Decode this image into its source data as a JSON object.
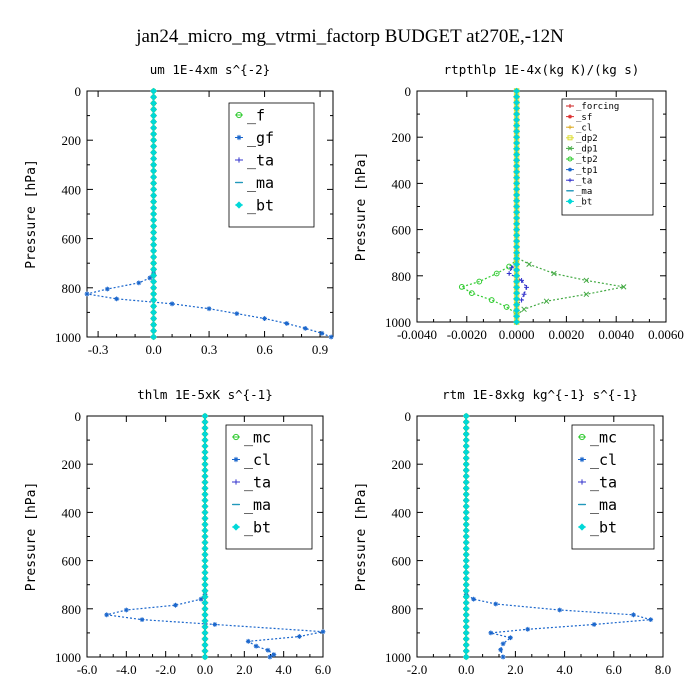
{
  "figure": {
    "title": "jan24_micro_mg_vtrmi_factorp  BUDGET at270E,-12N"
  },
  "chart_data": [
    {
      "type": "line",
      "title": "um   1E-4xm s^{-2}",
      "ylabel": "Pressure [hPa]",
      "xlabel": "",
      "xlim": [
        -0.36,
        0.97
      ],
      "ylim": [
        1000,
        0
      ],
      "x_ticks": [
        -0.3,
        0.0,
        0.3,
        0.6,
        0.9
      ],
      "x_tick_labels": [
        "-0.3",
        "0.0",
        "0.3",
        "0.6",
        "0.9"
      ],
      "y_ticks": [
        0,
        200,
        400,
        600,
        800,
        1000
      ],
      "y_tick_labels": [
        "0",
        "200",
        "400",
        "600",
        "800",
        "1000"
      ],
      "legend_position": "top-right",
      "series": [
        {
          "name": "_f",
          "color": "#33cc33",
          "marker": "circle",
          "mode": "zero"
        },
        {
          "name": "_gf",
          "color": "#1a66cc",
          "marker": "star",
          "mode": "points",
          "points": [
            [
              0,
              0
            ],
            [
              0,
              740
            ],
            [
              -0.02,
              760
            ],
            [
              -0.08,
              780
            ],
            [
              -0.25,
              805
            ],
            [
              -0.36,
              825
            ],
            [
              -0.2,
              845
            ],
            [
              0.1,
              865
            ],
            [
              0.3,
              885
            ],
            [
              0.45,
              905
            ],
            [
              0.6,
              925
            ],
            [
              0.72,
              945
            ],
            [
              0.82,
              965
            ],
            [
              0.91,
              985
            ],
            [
              0.96,
              1000
            ]
          ]
        },
        {
          "name": "_ta",
          "color": "#3333cc",
          "marker": "plus",
          "mode": "zero"
        },
        {
          "name": "_ma",
          "color": "#2299bb",
          "marker": "dash",
          "mode": "zero"
        },
        {
          "name": "_bt",
          "color": "#00d8d8",
          "marker": "diamond",
          "mode": "zero"
        }
      ]
    },
    {
      "type": "line",
      "title": "rtpthlp   1E-4x(kg K)/(kg s)",
      "ylabel": "Pressure [hPa]",
      "xlabel": "",
      "xlim": [
        -0.004,
        0.006
      ],
      "ylim": [
        1000,
        0
      ],
      "x_ticks": [
        -0.004,
        -0.002,
        0.0,
        0.002,
        0.004,
        0.006
      ],
      "x_tick_labels": [
        "-0.0040",
        "-0.0020",
        "0.0000",
        "0.0020",
        "0.0040",
        "0.0060"
      ],
      "y_ticks": [
        0,
        200,
        400,
        600,
        800,
        1000
      ],
      "y_tick_labels": [
        "0",
        "200",
        "400",
        "600",
        "800",
        "1000"
      ],
      "legend_position": "top-right",
      "series": [
        {
          "name": "_forcing",
          "color": "#cc2222",
          "marker": "plus",
          "mode": "zero"
        },
        {
          "name": "_sf",
          "color": "#dd3333",
          "marker": "star",
          "mode": "zero"
        },
        {
          "name": "_cl",
          "color": "#ddaa22",
          "marker": "plus",
          "mode": "zero"
        },
        {
          "name": "_dp2",
          "color": "#dddd33",
          "marker": "square",
          "mode": "zero"
        },
        {
          "name": "_dp1",
          "color": "#44aa44",
          "marker": "x",
          "mode": "points",
          "points": [
            [
              0,
              0
            ],
            [
              0,
              720
            ],
            [
              0.0005,
              750
            ],
            [
              0.0015,
              790
            ],
            [
              0.0028,
              820
            ],
            [
              0.0043,
              848
            ],
            [
              0.0028,
              880
            ],
            [
              0.0012,
              910
            ],
            [
              0.0003,
              945
            ],
            [
              0,
              970
            ],
            [
              0,
              1000
            ]
          ]
        },
        {
          "name": "_tp2",
          "color": "#33cc33",
          "marker": "circle",
          "mode": "points",
          "points": [
            [
              0,
              0
            ],
            [
              0,
              730
            ],
            [
              -0.0003,
              760
            ],
            [
              -0.0008,
              790
            ],
            [
              -0.0015,
              825
            ],
            [
              -0.0022,
              848
            ],
            [
              -0.0018,
              875
            ],
            [
              -0.001,
              905
            ],
            [
              -0.0004,
              935
            ],
            [
              0,
              965
            ],
            [
              0,
              1000
            ]
          ]
        },
        {
          "name": "_tp1",
          "color": "#1a66cc",
          "marker": "star",
          "mode": "zero"
        },
        {
          "name": "_ta",
          "color": "#3333cc",
          "marker": "plus",
          "mode": "points",
          "points": [
            [
              0,
              0
            ],
            [
              0,
              740
            ],
            [
              -0.0002,
              765
            ],
            [
              -0.0003,
              790
            ],
            [
              0.0002,
              820
            ],
            [
              0.0004,
              850
            ],
            [
              0.0003,
              880
            ],
            [
              0.0002,
              905
            ],
            [
              0,
              930
            ],
            [
              0,
              1000
            ]
          ]
        },
        {
          "name": "_ma",
          "color": "#2299bb",
          "marker": "dash",
          "mode": "zero"
        },
        {
          "name": "_bt",
          "color": "#00d8d8",
          "marker": "diamond",
          "mode": "zero"
        }
      ]
    },
    {
      "type": "line",
      "title": "thlm   1E-5xK s^{-1}",
      "ylabel": "Pressure [hPa]",
      "xlabel": "",
      "xlim": [
        -6.0,
        6.0
      ],
      "ylim": [
        1000,
        0
      ],
      "x_ticks": [
        -6,
        -4,
        -2,
        0,
        2,
        4,
        6
      ],
      "x_tick_labels": [
        "-6.0",
        "-4.0",
        "-2.0",
        "0.0",
        "2.0",
        "4.0",
        "6.0"
      ],
      "y_ticks": [
        0,
        200,
        400,
        600,
        800,
        1000
      ],
      "y_tick_labels": [
        "0",
        "200",
        "400",
        "600",
        "800",
        "1000"
      ],
      "legend_position": "top-right",
      "series": [
        {
          "name": "_mc",
          "color": "#33cc33",
          "marker": "circle",
          "mode": "zero"
        },
        {
          "name": "_cl",
          "color": "#1a66cc",
          "marker": "star",
          "mode": "points",
          "points": [
            [
              0,
              0
            ],
            [
              0,
              740
            ],
            [
              -0.2,
              760
            ],
            [
              -1.5,
              785
            ],
            [
              -4.0,
              805
            ],
            [
              -5.0,
              825
            ],
            [
              -3.2,
              845
            ],
            [
              0.5,
              865
            ],
            [
              6.0,
              895
            ],
            [
              4.8,
              915
            ],
            [
              2.2,
              935
            ],
            [
              2.6,
              955
            ],
            [
              3.2,
              972
            ],
            [
              3.5,
              990
            ],
            [
              3.3,
              1000
            ]
          ]
        },
        {
          "name": "_ta",
          "color": "#3333cc",
          "marker": "plus",
          "mode": "zero"
        },
        {
          "name": "_ma",
          "color": "#2299bb",
          "marker": "dash",
          "mode": "zero"
        },
        {
          "name": "_bt",
          "color": "#00d8d8",
          "marker": "diamond",
          "mode": "zero"
        }
      ]
    },
    {
      "type": "line",
      "title": "rtm   1E-8xkg kg^{-1} s^{-1}",
      "ylabel": "Pressure [hPa]",
      "xlabel": "",
      "xlim": [
        -2.0,
        8.0
      ],
      "ylim": [
        1000,
        0
      ],
      "x_ticks": [
        -2,
        0,
        2,
        4,
        6,
        8
      ],
      "x_tick_labels": [
        "-2.0",
        "0.0",
        "2.0",
        "4.0",
        "6.0",
        "8.0"
      ],
      "y_ticks": [
        0,
        200,
        400,
        600,
        800,
        1000
      ],
      "y_tick_labels": [
        "0",
        "200",
        "400",
        "600",
        "800",
        "1000"
      ],
      "legend_position": "top-right",
      "series": [
        {
          "name": "_mc",
          "color": "#33cc33",
          "marker": "circle",
          "mode": "zero"
        },
        {
          "name": "_cl",
          "color": "#1a66cc",
          "marker": "star",
          "mode": "points",
          "points": [
            [
              0,
              0
            ],
            [
              0,
              740
            ],
            [
              0.3,
              760
            ],
            [
              1.2,
              780
            ],
            [
              3.8,
              805
            ],
            [
              6.8,
              825
            ],
            [
              7.5,
              845
            ],
            [
              5.2,
              865
            ],
            [
              2.5,
              885
            ],
            [
              1.0,
              900
            ],
            [
              1.8,
              920
            ],
            [
              1.5,
              945
            ],
            [
              1.4,
              970
            ],
            [
              1.5,
              1000
            ]
          ]
        },
        {
          "name": "_ta",
          "color": "#3333cc",
          "marker": "plus",
          "mode": "zero"
        },
        {
          "name": "_ma",
          "color": "#2299bb",
          "marker": "dash",
          "mode": "zero"
        },
        {
          "name": "_bt",
          "color": "#00d8d8",
          "marker": "diamond",
          "mode": "zero"
        }
      ]
    }
  ]
}
